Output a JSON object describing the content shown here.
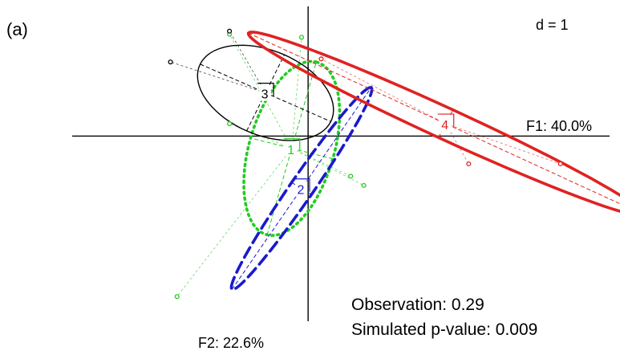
{
  "chart_data": {
    "type": "scatter",
    "panel_label": "(a)",
    "scale_label": "d = 1",
    "x_axis_label": "F1: 40.0%",
    "y_axis_label": "F2: 22.6%",
    "xlim": [
      -3.6,
      4.6
    ],
    "ylim": [
      -3.0,
      2.1
    ],
    "grid": false,
    "legend": "none",
    "annotations": [
      {
        "label": "Observation:",
        "value": "0.29"
      },
      {
        "label": "Simulated p-value:",
        "value": "0.009"
      }
    ],
    "groups": [
      {
        "label": "1",
        "color": "#22cc22",
        "line_style": "dotted",
        "center": [
          -0.25,
          -0.2
        ],
        "ellipse": {
          "a": 1.45,
          "b": 0.65,
          "angle_deg": 75
        },
        "points": [
          [
            -1.2,
            1.65
          ],
          [
            -0.1,
            1.6
          ],
          [
            -1.2,
            0.2
          ],
          [
            0.65,
            -0.65
          ],
          [
            0.85,
            -0.8
          ],
          [
            -2.0,
            -2.6
          ]
        ]
      },
      {
        "label": "2",
        "color": "#1a1acc",
        "line_style": "dashed",
        "center": [
          -0.1,
          -0.85
        ],
        "ellipse": {
          "a": 1.95,
          "b": 0.18,
          "angle_deg": 57
        },
        "points": []
      },
      {
        "label": "3",
        "color": "#000000",
        "line_style": "solid",
        "center": [
          -0.65,
          0.7
        ],
        "ellipse": {
          "a": 1.1,
          "b": 0.68,
          "angle_deg": -25
        },
        "points": [
          [
            -1.2,
            1.7
          ],
          [
            -2.1,
            1.2
          ]
        ]
      },
      {
        "label": "4",
        "color": "#e02222",
        "line_style": "solid",
        "center": [
          2.1,
          0.2
        ],
        "ellipse": {
          "a": 3.35,
          "b": 0.25,
          "angle_deg": -26
        },
        "points": [
          [
            0.2,
            1.25
          ],
          [
            2.45,
            -0.45
          ],
          [
            3.85,
            -0.45
          ]
        ]
      }
    ]
  }
}
